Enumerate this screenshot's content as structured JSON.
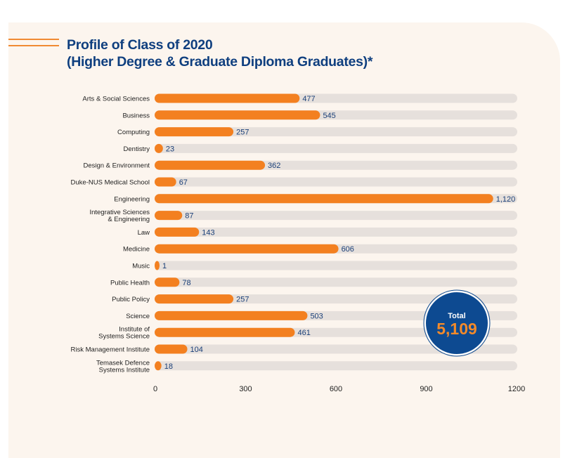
{
  "title_line1": "Profile of Class of 2020",
  "title_line2": "(Higher Degree & Graduate Diploma Graduates)*",
  "total": {
    "label": "Total",
    "value": "5,109"
  },
  "colors": {
    "bar": "#f38020",
    "track": "#e6e0dc",
    "title": "#0f3f7f",
    "badge": "#0d4a91",
    "badge_text": "#f38a2a"
  },
  "chart_data": {
    "type": "bar",
    "orientation": "horizontal",
    "categories": [
      [
        "Arts & Social Sciences"
      ],
      [
        "Business"
      ],
      [
        "Computing"
      ],
      [
        "Dentistry"
      ],
      [
        "Design & Environment"
      ],
      [
        "Duke-NUS Medical School"
      ],
      [
        "Engineering"
      ],
      [
        "Integrative Sciences",
        "& Engineering"
      ],
      [
        "Law"
      ],
      [
        "Medicine"
      ],
      [
        "Music"
      ],
      [
        "Public Health"
      ],
      [
        "Public Policy"
      ],
      [
        "Science"
      ],
      [
        "Institute of",
        "Systems Science"
      ],
      [
        "Risk Management Institute"
      ],
      [
        "Temasek Defence",
        "Systems Institute"
      ]
    ],
    "values": [
      477,
      545,
      257,
      23,
      362,
      67,
      1120,
      87,
      143,
      606,
      1,
      78,
      257,
      503,
      461,
      104,
      18
    ],
    "value_labels": [
      "477",
      "545",
      "257",
      "23",
      "362",
      "67",
      "1,120",
      "87",
      "143",
      "606",
      "1",
      "78",
      "257",
      "503",
      "461",
      "104",
      "18"
    ],
    "xlim": [
      0,
      1200
    ],
    "xticks": [
      "0",
      "300",
      "600",
      "900",
      "1200"
    ],
    "xtick_values": [
      0,
      300,
      600,
      900,
      1200
    ],
    "grid": false
  }
}
